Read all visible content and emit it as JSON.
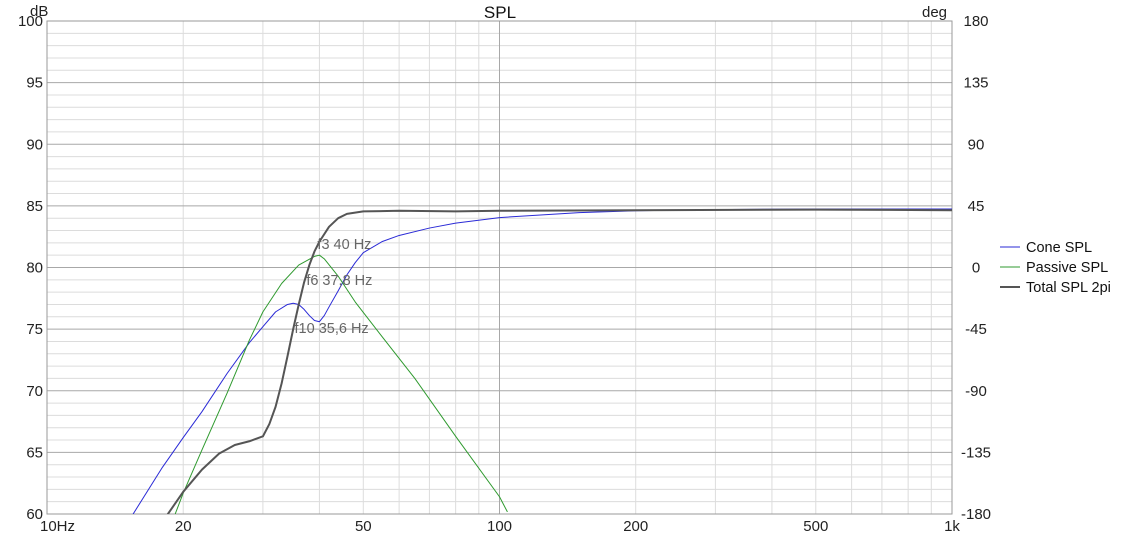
{
  "chart_data": {
    "type": "line",
    "title": "SPL",
    "ylabel_left": "dB",
    "ylabel_right": "deg",
    "x_scale": "log",
    "xlim": [
      10,
      1000
    ],
    "ylim": [
      60,
      100
    ],
    "y2lim": [
      -180,
      180
    ],
    "grid": true,
    "legend_position": "right",
    "x_ticks": [
      {
        "value": 10,
        "label": "10Hz"
      },
      {
        "value": 20,
        "label": "20"
      },
      {
        "value": 50,
        "label": "50"
      },
      {
        "value": 100,
        "label": "100"
      },
      {
        "value": 200,
        "label": "200"
      },
      {
        "value": 500,
        "label": "500"
      },
      {
        "value": 1000,
        "label": "1k"
      }
    ],
    "y_ticks": [
      {
        "value": 100,
        "label": "100"
      },
      {
        "value": 95,
        "label": "95"
      },
      {
        "value": 90,
        "label": "90"
      },
      {
        "value": 85,
        "label": "85"
      },
      {
        "value": 80,
        "label": "80"
      },
      {
        "value": 75,
        "label": "75"
      },
      {
        "value": 70,
        "label": "70"
      },
      {
        "value": 65,
        "label": "65"
      },
      {
        "value": 60,
        "label": "60"
      }
    ],
    "y2_ticks": [
      {
        "value": 180,
        "label": "180"
      },
      {
        "value": 135,
        "label": "135"
      },
      {
        "value": 90,
        "label": "90"
      },
      {
        "value": 45,
        "label": "45"
      },
      {
        "value": 0,
        "label": "0"
      },
      {
        "value": -45,
        "label": "-45"
      },
      {
        "value": -90,
        "label": "-90"
      },
      {
        "value": -135,
        "label": "-135"
      },
      {
        "value": -180,
        "label": "-180"
      }
    ],
    "series": [
      {
        "name": "Cone SPL",
        "color": "#2a2ad6",
        "stroke_width": 1,
        "points": [
          [
            15.5,
            60
          ],
          [
            18,
            63.8
          ],
          [
            20,
            66.2
          ],
          [
            22,
            68.3
          ],
          [
            25,
            71.4
          ],
          [
            28,
            73.9
          ],
          [
            30,
            75.2
          ],
          [
            32,
            76.4
          ],
          [
            34,
            77
          ],
          [
            35,
            77.1
          ],
          [
            36,
            77
          ],
          [
            37,
            76.6
          ],
          [
            38,
            76.1
          ],
          [
            39,
            75.7
          ],
          [
            40,
            75.6
          ],
          [
            41,
            76.1
          ],
          [
            42,
            76.8
          ],
          [
            44,
            78.1
          ],
          [
            46,
            79.4
          ],
          [
            48,
            80.4
          ],
          [
            50,
            81.2
          ],
          [
            55,
            82.1
          ],
          [
            60,
            82.6
          ],
          [
            70,
            83.2
          ],
          [
            80,
            83.6
          ],
          [
            100,
            84.05
          ],
          [
            150,
            84.45
          ],
          [
            200,
            84.6
          ],
          [
            300,
            84.7
          ],
          [
            500,
            84.75
          ],
          [
            1000,
            84.75
          ]
        ]
      },
      {
        "name": "Passive SPL",
        "color": "#2f9a2f",
        "stroke_width": 1,
        "points": [
          [
            19.2,
            60
          ],
          [
            20,
            61.7
          ],
          [
            22,
            65.2
          ],
          [
            25,
            69.8
          ],
          [
            28,
            74.1
          ],
          [
            30,
            76.4
          ],
          [
            33,
            78.7
          ],
          [
            36,
            80.2
          ],
          [
            39,
            80.9
          ],
          [
            40,
            81
          ],
          [
            41,
            80.7
          ],
          [
            44,
            79.3
          ],
          [
            48,
            77.2
          ],
          [
            55,
            74.4
          ],
          [
            65,
            71
          ],
          [
            80,
            66.3
          ],
          [
            100,
            61.4
          ],
          [
            104,
            60.2
          ]
        ]
      },
      {
        "name": "Total SPL 2pi",
        "color": "#555555",
        "stroke_width": 2,
        "points": [
          [
            18.5,
            60
          ],
          [
            20,
            61.8
          ],
          [
            22,
            63.6
          ],
          [
            24,
            64.9
          ],
          [
            26,
            65.6
          ],
          [
            28,
            65.9
          ],
          [
            30,
            66.3
          ],
          [
            31,
            67.3
          ],
          [
            32,
            68.7
          ],
          [
            33,
            70.6
          ],
          [
            34,
            72.8
          ],
          [
            35,
            75
          ],
          [
            36,
            77
          ],
          [
            37,
            78.8
          ],
          [
            38,
            80.2
          ],
          [
            39,
            81.3
          ],
          [
            40,
            82.1
          ],
          [
            42,
            83.3
          ],
          [
            44,
            84
          ],
          [
            46,
            84.35
          ],
          [
            50,
            84.55
          ],
          [
            60,
            84.6
          ],
          [
            80,
            84.55
          ],
          [
            100,
            84.6
          ],
          [
            200,
            84.65
          ],
          [
            500,
            84.7
          ],
          [
            1000,
            84.65
          ]
        ]
      }
    ],
    "annotations": [
      {
        "text": "f3 40 Hz",
        "x": 40,
        "y": 81.9
      },
      {
        "text": "f6 37,8 Hz",
        "x": 37.8,
        "y": 79
      },
      {
        "text": "f10 35,6 Hz",
        "x": 35.6,
        "y": 75.1
      }
    ]
  }
}
